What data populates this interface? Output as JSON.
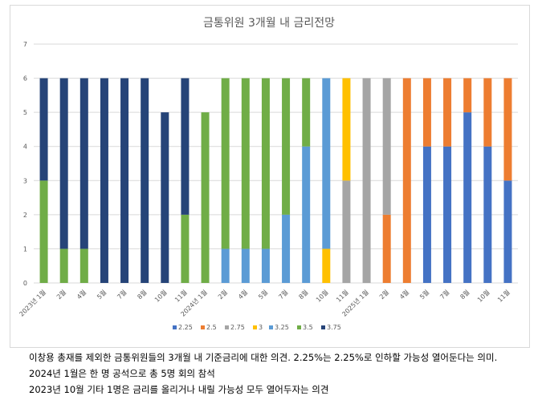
{
  "chart_data": {
    "type": "bar",
    "stacked": true,
    "title": "금통위원 3개월 내 금리전망",
    "xlabel": "",
    "ylabel": "",
    "ylim": [
      0,
      7
    ],
    "yticks": [
      0,
      1,
      2,
      3,
      4,
      5,
      6,
      7
    ],
    "grid": true,
    "legend_position": "bottom",
    "categories": [
      "2023년 1월",
      "2월",
      "4월",
      "5월",
      "7월",
      "8월",
      "10월",
      "11월",
      "2024년 1월",
      "2월",
      "4월",
      "5월",
      "7월",
      "8월",
      "10월",
      "11월",
      "2025년 1월",
      "2월",
      "4월",
      "5월",
      "7월",
      "8월",
      "10월",
      "11월"
    ],
    "series": [
      {
        "name": "2.25",
        "color": "#4472C4",
        "values": [
          0,
          0,
          0,
          0,
          0,
          0,
          0,
          0,
          0,
          0,
          0,
          0,
          0,
          0,
          0,
          0,
          0,
          0,
          0,
          4,
          4,
          5,
          4,
          3
        ]
      },
      {
        "name": "2.5",
        "color": "#ED7D31",
        "values": [
          0,
          0,
          0,
          0,
          0,
          0,
          0,
          0,
          0,
          0,
          0,
          0,
          0,
          0,
          0,
          0,
          0,
          2,
          6,
          2,
          2,
          1,
          2,
          3
        ]
      },
      {
        "name": "2.75",
        "color": "#A5A5A5",
        "values": [
          0,
          0,
          0,
          0,
          0,
          0,
          0,
          0,
          0,
          0,
          0,
          0,
          0,
          0,
          0,
          3,
          6,
          4,
          0,
          0,
          0,
          0,
          0,
          0
        ]
      },
      {
        "name": "3",
        "color": "#FFC000",
        "values": [
          0,
          0,
          0,
          0,
          0,
          0,
          0,
          0,
          0,
          0,
          0,
          0,
          0,
          0,
          1,
          3,
          0,
          0,
          0,
          0,
          0,
          0,
          0,
          0
        ]
      },
      {
        "name": "3.25",
        "color": "#5B9BD5",
        "values": [
          0,
          0,
          0,
          0,
          0,
          0,
          0,
          0,
          0,
          1,
          1,
          1,
          2,
          4,
          5,
          0,
          0,
          0,
          0,
          0,
          0,
          0,
          0,
          0
        ]
      },
      {
        "name": "3.5",
        "color": "#70AD47",
        "values": [
          3,
          1,
          1,
          0,
          0,
          0,
          0,
          2,
          5,
          5,
          5,
          5,
          4,
          2,
          0,
          0,
          0,
          0,
          0,
          0,
          0,
          0,
          0,
          0
        ]
      },
      {
        "name": "3.75",
        "color": "#264478",
        "values": [
          3,
          5,
          5,
          6,
          6,
          6,
          5,
          4,
          0,
          0,
          0,
          0,
          0,
          0,
          0,
          0,
          0,
          0,
          0,
          0,
          0,
          0,
          0,
          0
        ]
      }
    ]
  },
  "notes": [
    "이창용 총재를 제외한 금통위원들의 3개월 내 기준금리에 대한 의견. 2.25%는 2.25%로 인하할 가능성 열어둔다는 의미.",
    "2024년 1월은 한 명 공석으로 총 5명 회의 참석",
    "2023년 10월 기타 1명은 금리를 올리거나 내릴 가능성 모두 열어두자는 의견"
  ]
}
